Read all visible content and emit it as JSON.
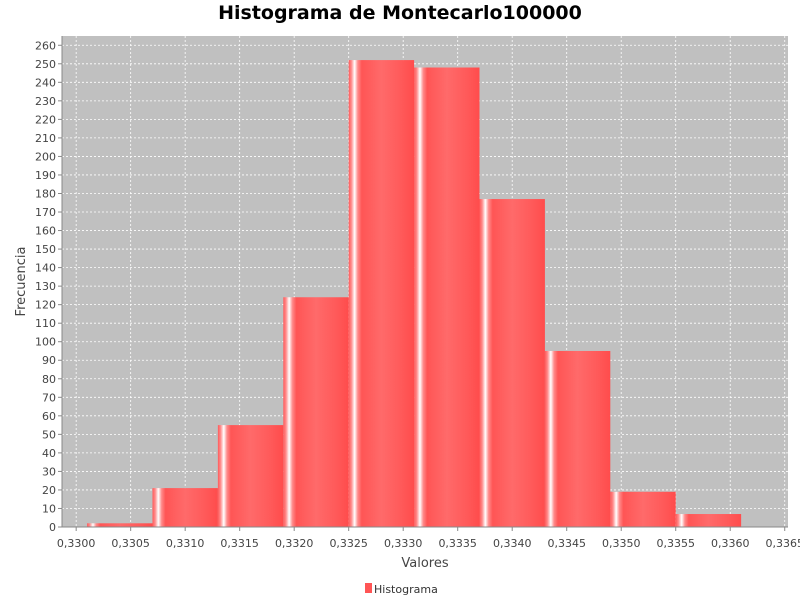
{
  "chart_data": {
    "type": "bar",
    "title": "Histograma de Montecarlo100000",
    "xlabel": "Valores",
    "ylabel": "Frecuencia",
    "xlim": [
      0.32987,
      0.33653
    ],
    "ylim": [
      0,
      265
    ],
    "x_ticks": [
      0.33,
      0.3305,
      0.331,
      0.3315,
      0.332,
      0.3325,
      0.333,
      0.3335,
      0.334,
      0.3345,
      0.335,
      0.3355,
      0.336,
      0.3365
    ],
    "x_tick_labels": [
      "0,3300",
      "0,3305",
      "0,3310",
      "0,3315",
      "0,3320",
      "0,3325",
      "0,3330",
      "0,3335",
      "0,3340",
      "0,3345",
      "0,3350",
      "0,3355",
      "0,3360",
      "0,3365"
    ],
    "y_ticks": [
      0,
      10,
      20,
      30,
      40,
      50,
      60,
      70,
      80,
      90,
      100,
      110,
      120,
      130,
      140,
      150,
      160,
      170,
      180,
      190,
      200,
      210,
      220,
      230,
      240,
      250,
      260
    ],
    "grid": true,
    "legend_position": "bottom",
    "bin_edges": [
      0.3301,
      0.3307,
      0.3313,
      0.3319,
      0.3325,
      0.3331,
      0.3337,
      0.3343,
      0.3349,
      0.3355,
      0.3361
    ],
    "series": [
      {
        "name": "Histograma",
        "color": "#ff5555",
        "values": [
          2,
          21,
          55,
          124,
          252,
          248,
          177,
          95,
          19,
          7
        ]
      }
    ]
  },
  "colors": {
    "plot_background": "#c0c0c0",
    "grid": "#ffffff",
    "bar": "#ff5555",
    "bar_highlight": "#ffffff"
  }
}
